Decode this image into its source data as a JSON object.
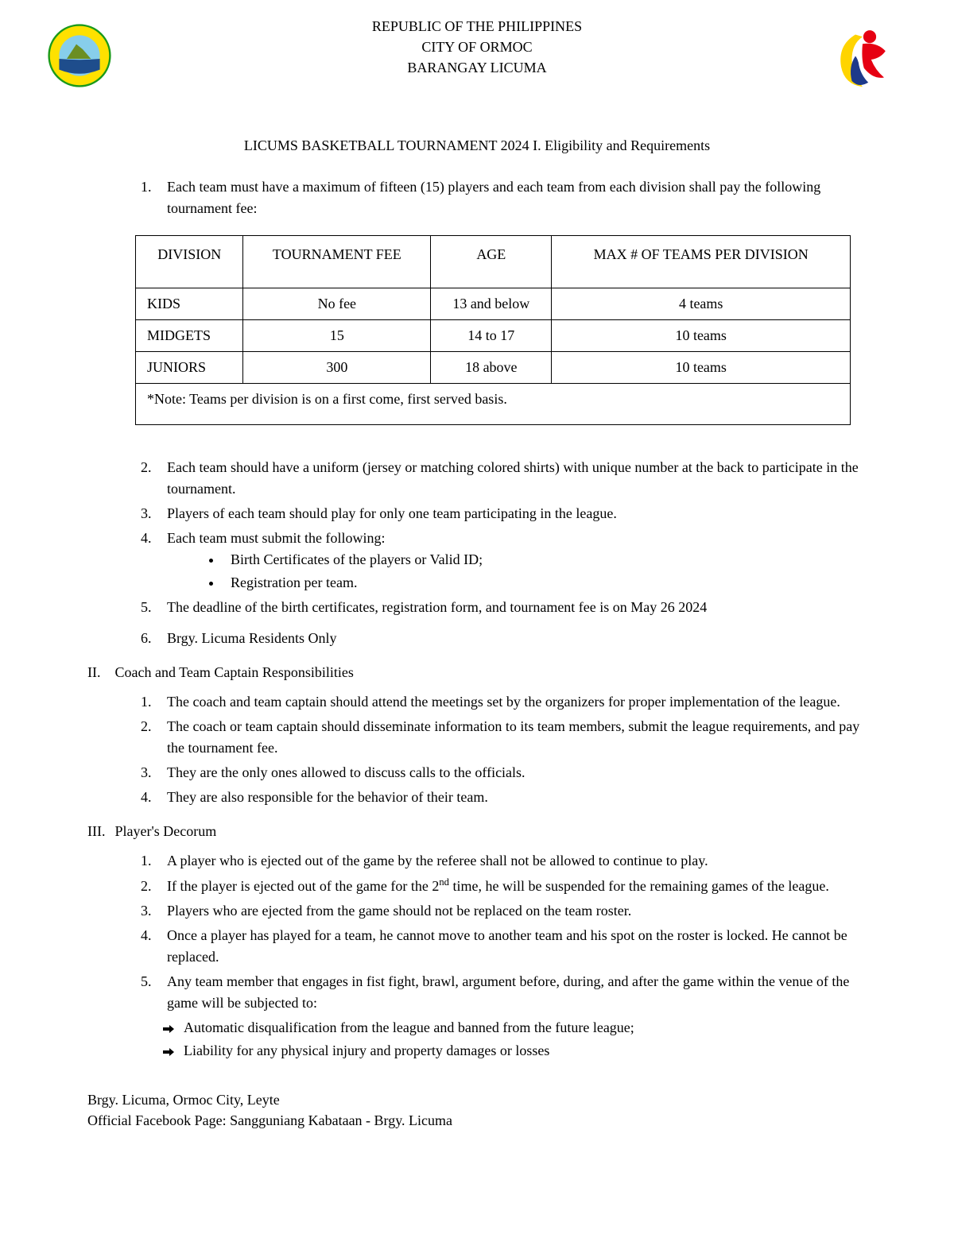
{
  "header": {
    "lines": [
      "REPUBLIC OF THE PHILIPPINES",
      "CITY OF ORMOC",
      "BARANGAY LICUMA"
    ]
  },
  "logos": {
    "left": {
      "outer_ring_fill": "#fee100",
      "outer_ring_stroke": "#1a9a1a",
      "inner_top": "#87ceeb",
      "inner_bottom": "#1a9a1a",
      "mountain": "#6b8e23"
    },
    "right": {
      "yellow": "#ffd400",
      "red": "#e60012",
      "blue": "#1e3a8a"
    }
  },
  "doc_title": "LICUMS BASKETBALL TOURNAMENT 2024 I. Eligibility and Requirements",
  "section1": {
    "items": [
      "Each team must have a maximum of fifteen (15) players and each team from each division shall pay the following tournament fee:",
      "Each team should have a uniform (jersey or matching colored shirts) with unique number at the back to participate in the tournament.",
      "Players of each team should play for only one team participating in the league.",
      "Each team must submit the following:",
      "The deadline of the birth certificates, registration form, and tournament fee is on May 26 2024",
      "Brgy. Licuma Residents Only"
    ],
    "submit_sub": [
      "Birth Certificates of the players or Valid ID;",
      "Registration per team."
    ]
  },
  "table": {
    "headers": [
      "DIVISION",
      "TOURNAMENT FEE",
      "AGE",
      "MAX # OF TEAMS PER DIVISION"
    ],
    "rows": [
      [
        "KIDS",
        "No fee",
        "13 and below",
        "4 teams"
      ],
      [
        "MIDGETS",
        "15",
        "14 to 17",
        "10 teams"
      ],
      [
        "JUNIORS",
        "300",
        "18 above",
        "10 teams"
      ]
    ],
    "note": "*Note: Teams per division is on a first come, first served basis."
  },
  "section2": {
    "header": "Coach and Team Captain Responsibilities",
    "roman": "II.",
    "items": [
      "The coach and team captain should attend the meetings set by the organizers for proper implementation of the league.",
      "The coach or team captain should disseminate information to its team members, submit the league requirements, and pay the tournament fee.",
      "They are the only ones allowed to discuss calls to the officials.",
      "They are also responsible for the behavior of their team."
    ]
  },
  "section3": {
    "header": "Player's Decorum",
    "roman": "III.",
    "items": [
      "A player who is ejected out of the game by the referee shall not be allowed to continue to play.",
      "If the player is ejected out of the game for the 2|nd| time, he will be suspended for the remaining games of the league.",
      "Players who are ejected from the game should not be replaced on the team roster.",
      "Once a player has played for a team, he cannot move to another team and his spot on the roster is locked. He cannot be replaced.",
      "Any team member that engages in fist fight, brawl, argument before, during, and after the game within the venue of the game will be subjected to:"
    ],
    "consequences": [
      "Automatic disqualification from the league and banned from the future league;",
      "Liability for any physical injury and property damages or losses"
    ]
  },
  "footer": {
    "line1": "Brgy. Licuma, Ormoc City, Leyte",
    "line2": "Official Facebook Page: Sangguniang Kabataan - Brgy. Licuma"
  }
}
